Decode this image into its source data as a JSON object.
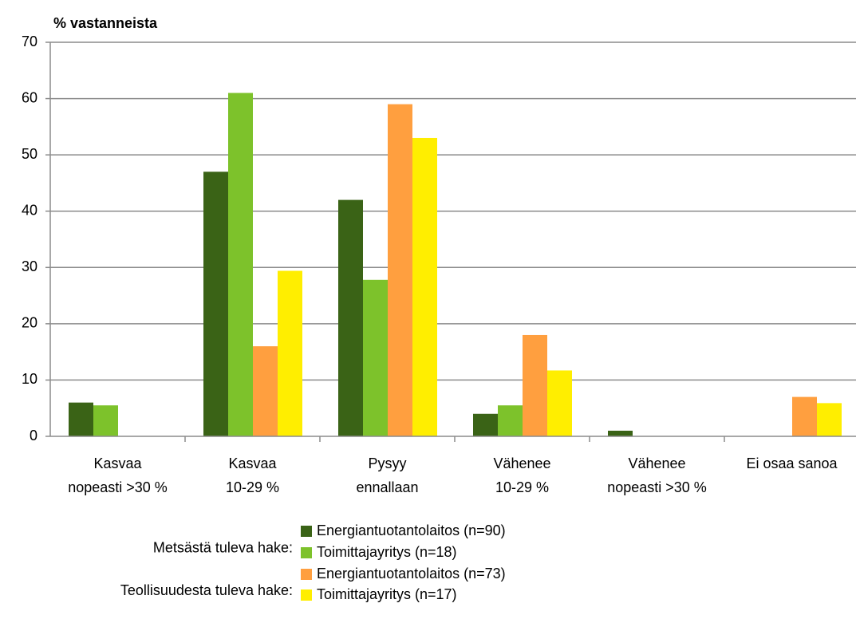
{
  "chart_data": {
    "type": "bar",
    "y_label": "% vastanneista",
    "categories": [
      [
        "Kasvaa",
        "nopeasti >30 %"
      ],
      [
        "Kasvaa",
        "10-29 %"
      ],
      [
        "Pysyy",
        "ennallaan"
      ],
      [
        "Vähenee",
        "10-29 %"
      ],
      [
        "Vähenee",
        "nopeasti >30 %"
      ],
      [
        "Ei osaa sanoa"
      ]
    ],
    "series": [
      {
        "name": "Energiantuotantolaitos (n=90)",
        "color": "#3a6316",
        "values": [
          6,
          47,
          42,
          4,
          1,
          0
        ]
      },
      {
        "name": "Toimittajayritys (n=18)",
        "color": "#7dc22b",
        "values": [
          5.5,
          61,
          27.8,
          5.5,
          0,
          0
        ]
      },
      {
        "name": "Energiantuotantolaitos (n=73)",
        "color": "#ff9f3f",
        "values": [
          0,
          16,
          59,
          18,
          0,
          7
        ]
      },
      {
        "name": "Toimittajayritys (n=17)",
        "color": "#ffee00",
        "values": [
          0,
          29.4,
          53,
          11.7,
          0,
          5.9
        ]
      }
    ],
    "legend_groups": [
      "Metsästä tuleva hake:",
      "Teollisuudesta tuleva hake:"
    ],
    "ylim": [
      0,
      70
    ],
    "yticks": [
      0,
      10,
      20,
      30,
      40,
      50,
      60,
      70
    ],
    "grid": true
  }
}
